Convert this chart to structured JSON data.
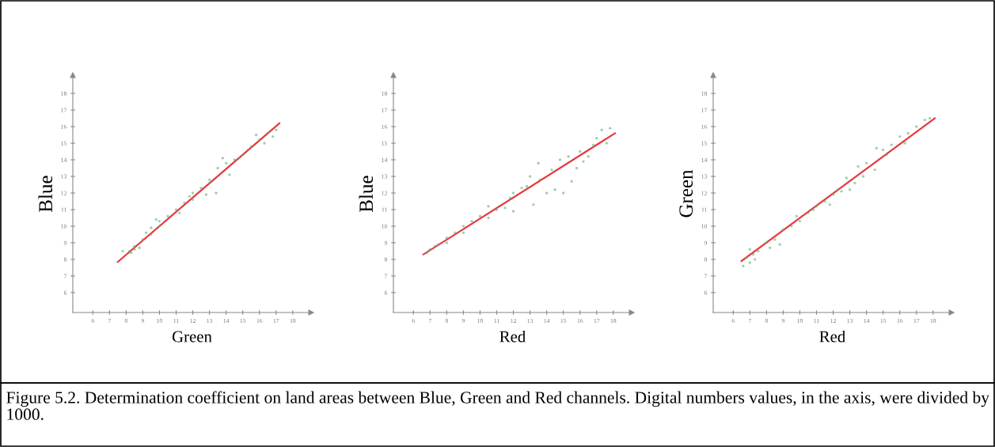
{
  "chart_data": [
    {
      "type": "scatter",
      "xlabel": "Green",
      "ylabel": "Blue",
      "xlim": [
        4.8,
        19.1
      ],
      "ylim": [
        4.8,
        19.1
      ],
      "xticks": [
        6,
        7,
        8,
        9,
        10,
        11,
        12,
        13,
        14,
        15,
        16,
        17,
        18
      ],
      "yticks": [
        6,
        7,
        8,
        9,
        10,
        11,
        12,
        13,
        14,
        15,
        16,
        17,
        18
      ],
      "marker": "circle",
      "annotations": [
        "Figure 5.2. Determination coefficient on land areas between Blue, Green and Red channels. Digital numbers values, in the axis, were divided by 1000."
      ],
      "series": [
        {
          "color": "#5fae82",
          "x": [
            7.8,
            8.2,
            8.5,
            8.8,
            9,
            9.2,
            9.5,
            10,
            10.5,
            11,
            11.5,
            12,
            12.5,
            13,
            13.5,
            13.8,
            12.8,
            13.4,
            14.2,
            14.5,
            15,
            15.5,
            16,
            16.5,
            17,
            16.8,
            15.3,
            14,
            11.2,
            9.5,
            8.5,
            10,
            12,
            13,
            15.8,
            16.3,
            14.8,
            11.8,
            9.8,
            8.3
          ],
          "values": [
            8.5,
            8.5,
            8.6,
            8.7,
            9.2,
            9.6,
            9.9,
            10.3,
            10.6,
            11.0,
            11.4,
            12.0,
            12.3,
            12.6,
            13.5,
            14.1,
            11.9,
            12.0,
            13.1,
            14.0,
            14.3,
            14.8,
            15.2,
            15.6,
            15.8,
            15.4,
            14.6,
            13.8,
            10.8,
            9.5,
            8.8,
            10.0,
            11.6,
            12.8,
            15.5,
            15.0,
            14.1,
            11.8,
            10.4,
            8.4
          ]
        },
        {
          "type": "line",
          "color": "#e8383d",
          "marker": "none",
          "x": [
            7.5,
            17.2
          ],
          "values": [
            7.85,
            16.2
          ]
        }
      ]
    },
    {
      "type": "scatter",
      "xlabel": "Red",
      "ylabel": "Blue",
      "xlim": [
        4.8,
        19.1
      ],
      "ylim": [
        4.8,
        19.1
      ],
      "xticks": [
        6,
        7,
        8,
        9,
        10,
        11,
        12,
        13,
        14,
        15,
        16,
        17,
        18
      ],
      "yticks": [
        6,
        7,
        8,
        9,
        10,
        11,
        12,
        13,
        14,
        15,
        16,
        17,
        18
      ],
      "marker": "circle",
      "series": [
        {
          "color": "#5fae82",
          "x": [
            6.8,
            7,
            7.3,
            7.5,
            8,
            8.5,
            9,
            9.5,
            10,
            10.5,
            11,
            11.5,
            12,
            12,
            12.5,
            13,
            13.5,
            13.2,
            14,
            14.3,
            14.5,
            15,
            15.5,
            15.3,
            15.8,
            16,
            16.5,
            16.8,
            17,
            17.3,
            17.6,
            17.8,
            9,
            8,
            10.5,
            12.8,
            16.2,
            14.8,
            11.8,
            13.6
          ],
          "values": [
            8.4,
            8.6,
            8.8,
            8.9,
            9.3,
            9.6,
            10.0,
            10.3,
            10.6,
            11.2,
            11.0,
            11.1,
            10.9,
            12.0,
            12.3,
            13.0,
            13.8,
            11.3,
            12.0,
            13.4,
            12.2,
            12.0,
            12.7,
            14.2,
            13.5,
            14.5,
            14.2,
            14.9,
            15.3,
            15.8,
            15.0,
            15.9,
            9.6,
            9.0,
            10.5,
            12.4,
            13.9,
            14.0,
            11.7,
            12.8
          ]
        },
        {
          "type": "line",
          "color": "#e8383d",
          "marker": "none",
          "x": [
            6.6,
            18.1
          ],
          "values": [
            8.3,
            15.6
          ]
        }
      ]
    },
    {
      "type": "scatter",
      "xlabel": "Red",
      "ylabel": "Green",
      "xlim": [
        4.8,
        19.1
      ],
      "ylim": [
        4.8,
        19.1
      ],
      "xticks": [
        6,
        7,
        8,
        9,
        10,
        11,
        12,
        13,
        14,
        15,
        16,
        17,
        18
      ],
      "yticks": [
        6,
        7,
        8,
        9,
        10,
        11,
        12,
        13,
        14,
        15,
        16,
        17,
        18
      ],
      "marker": "circle",
      "series": [
        {
          "color": "#5fae82",
          "x": [
            6.6,
            6.8,
            7,
            7.2,
            7.5,
            7.3,
            8,
            8.5,
            8.8,
            9,
            9.5,
            10,
            10.5,
            11,
            11.5,
            12,
            12.3,
            12.8,
            13,
            13.5,
            13.8,
            14,
            14.5,
            15,
            15.2,
            15.5,
            16,
            16.5,
            17,
            17.5,
            17.8,
            7,
            8.2,
            9.8,
            11.8,
            13.3,
            14.6,
            16.3,
            12.5,
            10.8
          ],
          "values": [
            7.6,
            8.1,
            8.6,
            8.3,
            8.5,
            8.0,
            9.0,
            9.2,
            8.9,
            9.8,
            10.0,
            10.3,
            10.8,
            11.2,
            11.5,
            11.9,
            12.2,
            12.9,
            12.2,
            13.6,
            13.0,
            13.8,
            13.4,
            14.6,
            14.3,
            14.9,
            15.4,
            15.6,
            16.0,
            16.4,
            16.5,
            7.8,
            8.7,
            10.6,
            11.3,
            12.6,
            14.7,
            15.0,
            12.1,
            11.0
          ]
        },
        {
          "type": "line",
          "color": "#e8383d",
          "marker": "none",
          "x": [
            6.5,
            18.1
          ],
          "values": [
            7.9,
            16.5
          ]
        }
      ]
    }
  ]
}
